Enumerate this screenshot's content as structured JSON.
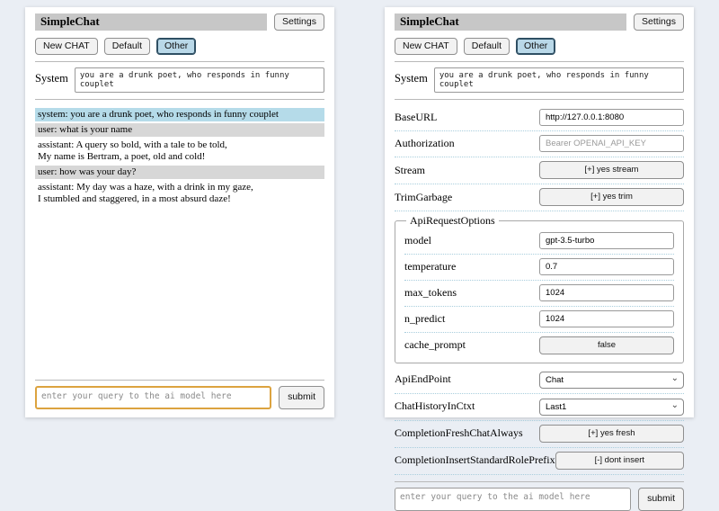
{
  "app": {
    "title": "SimpleChat",
    "settings_button": "Settings",
    "tabs": {
      "new_chat": "New CHAT",
      "default": "Default",
      "other": "Other"
    },
    "system_label": "System",
    "system_prompt": "you are a drunk poet, who responds in funny couplet",
    "query_placeholder": "enter your query to the ai model here",
    "submit_button": "submit"
  },
  "chat": {
    "messages": [
      {
        "role": "system",
        "text": "system: you are a drunk poet, who responds in funny couplet"
      },
      {
        "role": "user",
        "text": "user: what is your name"
      },
      {
        "role": "assistant",
        "text": "assistant: A query so bold, with a tale to be told,\nMy name is Bertram, a poet, old and cold!"
      },
      {
        "role": "user",
        "text": "user: how was your day?"
      },
      {
        "role": "assistant",
        "text": "assistant: My day was a haze, with a drink in my gaze,\nI stumbled and staggered, in a most absurd daze!"
      }
    ]
  },
  "settings": {
    "base_url": {
      "label": "BaseURL",
      "value": "http://127.0.0.1:8080"
    },
    "authorization": {
      "label": "Authorization",
      "placeholder": "Bearer OPENAI_API_KEY"
    },
    "stream": {
      "label": "Stream",
      "button": "[+] yes stream"
    },
    "trim_garbage": {
      "label": "TrimGarbage",
      "button": "[+] yes trim"
    },
    "api_request_options": {
      "legend": "ApiRequestOptions",
      "model": {
        "label": "model",
        "value": "gpt-3.5-turbo"
      },
      "temperature": {
        "label": "temperature",
        "value": "0.7"
      },
      "max_tokens": {
        "label": "max_tokens",
        "value": "1024"
      },
      "n_predict": {
        "label": "n_predict",
        "value": "1024"
      },
      "cache_prompt": {
        "label": "cache_prompt",
        "button": "false"
      }
    },
    "api_endpoint": {
      "label": "ApiEndPoint",
      "value": "Chat"
    },
    "chat_history_in_ctxt": {
      "label": "ChatHistoryInCtxt",
      "value": "Last1"
    },
    "completion_fresh_chat_always": {
      "label": "CompletionFreshChatAlways",
      "button": "[+] yes fresh"
    },
    "completion_insert_standard_role_prefix": {
      "label": "CompletionInsertStandardRolePrefix",
      "button": "[-] dont insert"
    }
  },
  "icons": {
    "chevron_down": "⌄"
  },
  "colors": {
    "page_bg": "#eaeef4",
    "titlebar_bg": "#c7c7c7",
    "active_tab_bg": "#b9d8e8",
    "active_tab_border": "#2f4f63",
    "system_msg_bg": "#b5dbe9",
    "user_msg_bg": "#d7d7d7",
    "focus_border": "#dca33f"
  }
}
